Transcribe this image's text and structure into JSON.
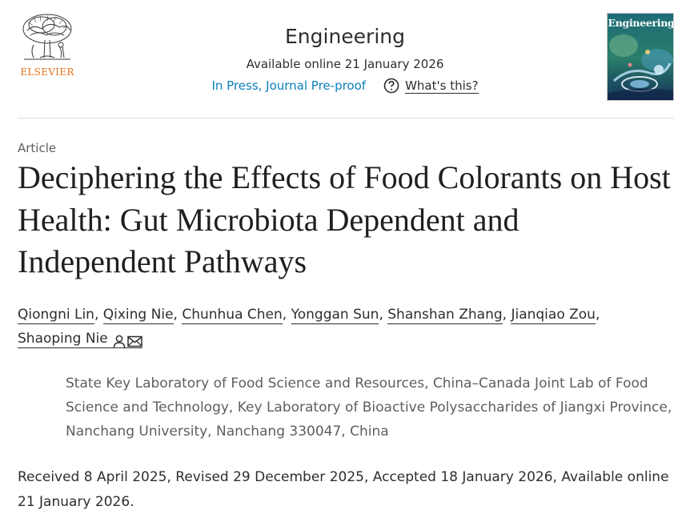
{
  "header": {
    "publisher_logo": "ELSEVIER",
    "journal_name": "Engineering",
    "available_online": "Available online 21 January 2026",
    "status": "In Press, Journal Pre-proof",
    "help_link": "What's this?",
    "cover_title": "Engineering"
  },
  "article": {
    "type": "Article",
    "title": "Deciphering the Effects of Food Colorants on Host Health: Gut Microbiota Dependent and Independent Pathways",
    "authors": [
      "Qiongni Lin",
      "Qixing Nie",
      "Chunhua Chen",
      "Yonggan Sun",
      "Shanshan Zhang",
      "Jianqiao Zou",
      "Shaoping Nie"
    ],
    "separator": ",",
    "affiliation": "State Key Laboratory of Food Science and Resources, China–Canada Joint Lab of Food Science and Technology, Key Laboratory of Bioactive Polysaccharides of Jiangxi Province, Nanchang University, Nanchang 330047, China",
    "dates": "Received 8 April 2025, Revised 29 December 2025, Accepted 18 January 2026, Available online 21 January 2026."
  },
  "colors": {
    "accent_link": "#0c7dbb",
    "elsevier_orange": "#e9711c",
    "text": "#1f1f1f",
    "muted": "#5e5e5e"
  },
  "icons": {
    "help": "question-circle-icon",
    "corresponding_author": "person-icon",
    "email": "envelope-icon"
  }
}
